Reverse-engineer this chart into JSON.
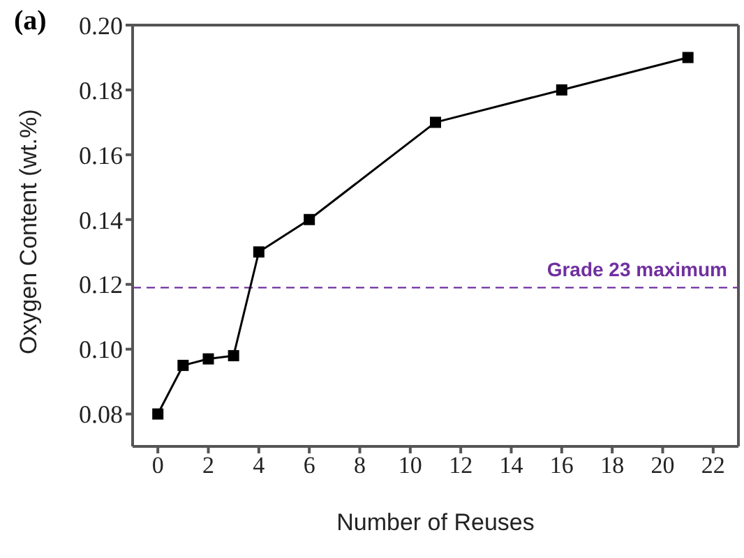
{
  "chart_data": {
    "type": "line",
    "title": "(a)",
    "xlabel": "Number of Reuses",
    "ylabel": "Oxygen Content (wt.%)",
    "x": [
      0,
      1,
      2,
      3,
      4,
      6,
      11,
      16,
      21
    ],
    "series": [
      {
        "color": "#000000",
        "values": [
          0.08,
          0.095,
          0.097,
          0.098,
          0.13,
          0.14,
          0.17,
          0.18,
          0.19
        ]
      }
    ],
    "xlim": [
      -1,
      23
    ],
    "xticks": [
      0,
      2,
      4,
      6,
      8,
      10,
      12,
      14,
      16,
      18,
      20,
      22
    ],
    "ylim": [
      0.07,
      0.2
    ],
    "yticks": [
      {
        "value": 0.08,
        "label": "0.08"
      },
      {
        "value": 0.1,
        "label": "0.10"
      },
      {
        "value": 0.12,
        "label": "0.12"
      },
      {
        "value": 0.14,
        "label": "0.14"
      },
      {
        "value": 0.16,
        "label": "0.16"
      },
      {
        "value": 0.18,
        "label": "0.18"
      },
      {
        "value": 0.2,
        "label": "0.20"
      }
    ],
    "ref_lines": [
      {
        "axis": "y",
        "value": 0.119,
        "label": "Grade 23 maximum",
        "color": "#7030a0",
        "line_style": "dashed"
      }
    ],
    "marker": "square",
    "line_style": "solid",
    "grid": false
  }
}
